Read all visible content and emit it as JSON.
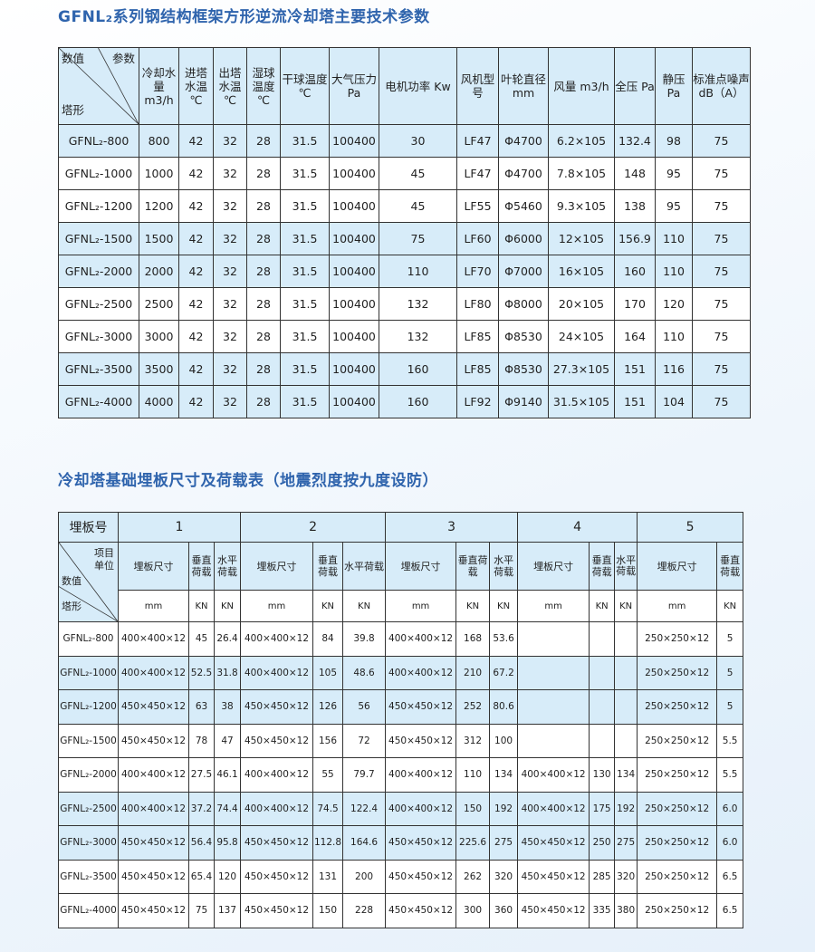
{
  "table1": {
    "title": "GFNL₂系列钢结构框架方形逆流冷却塔主要技术参数",
    "corner": {
      "top_left": "数值",
      "top_right": "参数",
      "bottom_left": "塔形"
    },
    "headers": [
      "冷却水量 m3/h",
      "进塔水温 ℃",
      "出塔水温 ℃",
      "湿球温度 ℃",
      "干球温度 ℃",
      "大气压力 Pa",
      "电机功率 Kw",
      "风机型号",
      "叶轮直径 mm",
      "风量 m3/h",
      "全压 Pa",
      "静压 Pa",
      "标准点噪声 dB（A）"
    ],
    "rows": [
      [
        "GFNL₂-800",
        "800",
        "42",
        "32",
        "28",
        "31.5",
        "100400",
        "30",
        "LF47",
        "Φ4700",
        "6.2×105",
        "132.4",
        "98",
        "75"
      ],
      [
        "GFNL₂-1000",
        "1000",
        "42",
        "32",
        "28",
        "31.5",
        "100400",
        "45",
        "LF47",
        "Φ4700",
        "7.8×105",
        "148",
        "95",
        "75"
      ],
      [
        "GFNL₂-1200",
        "1200",
        "42",
        "32",
        "28",
        "31.5",
        "100400",
        "45",
        "LF55",
        "Φ5460",
        "9.3×105",
        "138",
        "95",
        "75"
      ],
      [
        "GFNL₂-1500",
        "1500",
        "42",
        "32",
        "28",
        "31.5",
        "100400",
        "75",
        "LF60",
        "Φ6000",
        "12×105",
        "156.9",
        "110",
        "75"
      ],
      [
        "GFNL₂-2000",
        "2000",
        "42",
        "32",
        "28",
        "31.5",
        "100400",
        "110",
        "LF70",
        "Φ7000",
        "16×105",
        "160",
        "110",
        "75"
      ],
      [
        "GFNL₂-2500",
        "2500",
        "42",
        "32",
        "28",
        "31.5",
        "100400",
        "132",
        "LF80",
        "Φ8000",
        "20×105",
        "170",
        "120",
        "75"
      ],
      [
        "GFNL₂-3000",
        "3000",
        "42",
        "32",
        "28",
        "31.5",
        "100400",
        "132",
        "LF85",
        "Φ8530",
        "24×105",
        "164",
        "110",
        "75"
      ],
      [
        "GFNL₂-3500",
        "3500",
        "42",
        "32",
        "28",
        "31.5",
        "100400",
        "160",
        "LF85",
        "Φ8530",
        "27.3×105",
        "151",
        "116",
        "75"
      ],
      [
        "GFNL₂-4000",
        "4000",
        "42",
        "32",
        "28",
        "31.5",
        "100400",
        "160",
        "LF92",
        "Φ9140",
        "31.5×105",
        "151",
        "104",
        "75"
      ]
    ],
    "shaded_rows": [
      0,
      3,
      4,
      7,
      8
    ],
    "shade_color": "#d7ecf9"
  },
  "table2": {
    "title": "冷却塔基础埋板尺寸及荷载表（地震烈度按九度设防）",
    "plate_label": "埋板号",
    "plate_numbers": [
      "1",
      "2",
      "3",
      "4",
      "5"
    ],
    "corner": {
      "item": "项目",
      "unit": "单位",
      "value": "数值",
      "model": "塔形"
    },
    "subheaders": [
      "埋板尺寸",
      "垂直荷载",
      "水平荷载",
      "埋板尺寸",
      "垂直荷载",
      "水平荷载",
      "埋板尺寸",
      "垂直荷载",
      "水平荷载",
      "埋板尺寸",
      "垂直荷载",
      "水平荷载",
      "埋板尺寸",
      "垂直荷载"
    ],
    "units": [
      "mm",
      "KN",
      "KN",
      "mm",
      "KN",
      "KN",
      "mm",
      "KN",
      "KN",
      "mm",
      "KN",
      "KN",
      "mm",
      "KN"
    ],
    "rows": [
      [
        "GFNL₂-800",
        "400×400×12",
        "45",
        "26.4",
        "400×400×12",
        "84",
        "39.8",
        "400×400×12",
        "168",
        "53.6",
        "",
        "",
        "",
        "250×250×12",
        "5"
      ],
      [
        "GFNL₂-1000",
        "400×400×12",
        "52.5",
        "31.8",
        "400×400×12",
        "105",
        "48.6",
        "400×400×12",
        "210",
        "67.2",
        "",
        "",
        "",
        "250×250×12",
        "5"
      ],
      [
        "GFNL₂-1200",
        "450×450×12",
        "63",
        "38",
        "450×450×12",
        "126",
        "56",
        "450×450×12",
        "252",
        "80.6",
        "",
        "",
        "",
        "250×250×12",
        "5"
      ],
      [
        "GFNL₂-1500",
        "450×450×12",
        "78",
        "47",
        "450×450×12",
        "156",
        "72",
        "450×450×12",
        "312",
        "100",
        "",
        "",
        "",
        "250×250×12",
        "5.5"
      ],
      [
        "GFNL₂-2000",
        "400×400×12",
        "27.5",
        "46.1",
        "400×400×12",
        "55",
        "79.7",
        "400×400×12",
        "110",
        "134",
        "400×400×12",
        "130",
        "134",
        "250×250×12",
        "5.5"
      ],
      [
        "GFNL₂-2500",
        "400×400×12",
        "37.2",
        "74.4",
        "400×400×12",
        "74.5",
        "122.4",
        "400×400×12",
        "150",
        "192",
        "400×400×12",
        "175",
        "192",
        "250×250×12",
        "6.0"
      ],
      [
        "GFNL₂-3000",
        "450×450×12",
        "56.4",
        "95.8",
        "450×450×12",
        "112.8",
        "164.6",
        "450×450×12",
        "225.6",
        "275",
        "450×450×12",
        "250",
        "275",
        "250×250×12",
        "6.0"
      ],
      [
        "GFNL₂-3500",
        "450×450×12",
        "65.4",
        "120",
        "450×450×12",
        "131",
        "200",
        "450×450×12",
        "262",
        "320",
        "450×450×12",
        "285",
        "320",
        "250×250×12",
        "6.5"
      ],
      [
        "GFNL₂-4000",
        "450×450×12",
        "75",
        "137",
        "450×450×12",
        "150",
        "228",
        "450×450×12",
        "300",
        "360",
        "450×450×12",
        "335",
        "380",
        "250×250×12",
        "6.5"
      ]
    ],
    "shaded_rows": [
      1,
      2,
      5,
      6
    ],
    "title_color": "#2f64ad"
  }
}
